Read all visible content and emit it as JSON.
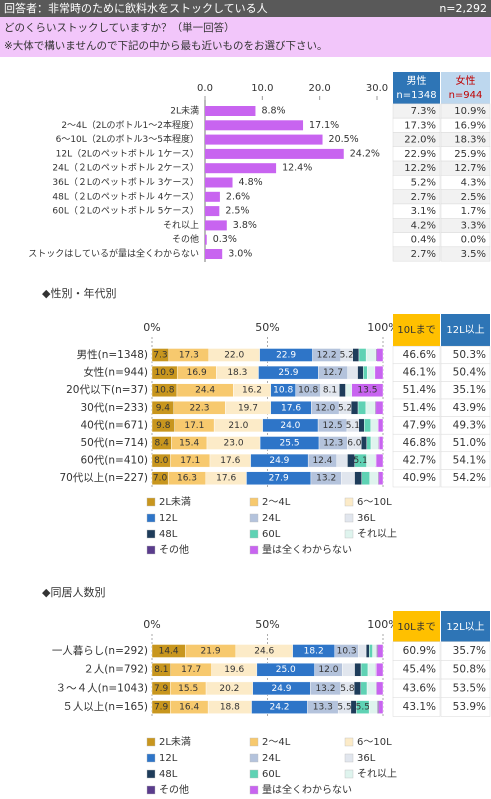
{
  "header": {
    "title": "回答者：非常時のために飲料水をストックしている人",
    "n": "n=2,292"
  },
  "question": {
    "text": "どのくらいストックしていますか？（単一回答）",
    "note": "※大体で構いませんので下記の中から最も近いものをお選び下さい。"
  },
  "chart_data": [
    {
      "type": "bar",
      "orientation": "horizontal",
      "color": "#c864f0",
      "categories": [
        "2L未満",
        "2〜4L（2Lのボトル1〜2本程度）",
        "6〜10L（2Lのボトル3〜5本程度）",
        "12L（2Lのペットボトル 1ケース）",
        "24L（２Lのペットボトル 2ケース）",
        "36L（２Lのペットボトル 3ケース）",
        "48L（２Lのペットボトル 4ケース）",
        "60L（２Lのペットボトル 5ケース）",
        "それ以上",
        "その他",
        "ストックはしているが量は全くわからない"
      ],
      "values": [
        8.8,
        17.1,
        20.5,
        24.2,
        12.4,
        4.8,
        2.6,
        2.5,
        3.8,
        0.3,
        3.0
      ],
      "value_labels": [
        "8.8%",
        "17.1%",
        "20.5%",
        "24.2%",
        "12.4%",
        "4.8%",
        "2.6%",
        "2.5%",
        "3.8%",
        "0.3%",
        "3.0%"
      ],
      "xlim": [
        0,
        30
      ],
      "xticks": [
        {
          "value": 0,
          "label": "0.0"
        },
        {
          "value": 10,
          "label": "10.0"
        },
        {
          "value": 20,
          "label": "20.0"
        },
        {
          "value": 30,
          "label": "30.0"
        }
      ],
      "table": {
        "columns": [
          {
            "name": "男性",
            "n": "n=1348",
            "color": "#2e75b6",
            "text_color": "#ffffff"
          },
          {
            "name": "女性",
            "n": "n=944",
            "color": "#bdd7ee",
            "text_color": "#c00000"
          }
        ],
        "rows": [
          [
            "7.3%",
            "10.9%"
          ],
          [
            "17.3%",
            "16.9%"
          ],
          [
            "22.0%",
            "18.3%"
          ],
          [
            "22.9%",
            "25.9%"
          ],
          [
            "12.2%",
            "12.7%"
          ],
          [
            "5.2%",
            "4.3%"
          ],
          [
            "2.7%",
            "2.5%"
          ],
          [
            "3.1%",
            "1.7%"
          ],
          [
            "4.2%",
            "3.3%"
          ],
          [
            "0.4%",
            "0.0%"
          ],
          [
            "2.7%",
            "3.5%"
          ]
        ]
      }
    },
    {
      "type": "stacked_bar",
      "title": "◆性別・年代別",
      "categories": [
        "男性(n=1348)",
        "女性(n=944)",
        "20代以下(n=37)",
        "30代(n=233)",
        "40代(n=671)",
        "50代(n=714)",
        "60代(n=410)",
        "70代以上(n=227)"
      ],
      "xlim": [
        0,
        100
      ],
      "xticks": [
        {
          "value": 0,
          "label": "0%"
        },
        {
          "value": 50,
          "label": "50%"
        },
        {
          "value": 100,
          "label": "100%"
        }
      ],
      "series": [
        {
          "name": "2L未満",
          "color": "#c8961e",
          "values": [
            7.3,
            10.9,
            10.8,
            9.4,
            9.8,
            8.4,
            8.0,
            7.0
          ],
          "value_labels": [
            "7.3",
            "10.9",
            "10.8",
            "9.4",
            "9.8",
            "8.4",
            "8.0",
            "7.0"
          ]
        },
        {
          "name": "2〜4L",
          "color": "#f7c96e",
          "values": [
            17.3,
            16.9,
            24.4,
            22.3,
            17.1,
            15.4,
            17.1,
            16.3
          ],
          "value_labels": [
            "17.3",
            "16.9",
            "24.4",
            "22.3",
            "17.1",
            "15.4",
            "17.1",
            "16.3"
          ]
        },
        {
          "name": "6〜10L",
          "color": "#fcebc8",
          "values": [
            22.0,
            18.3,
            16.2,
            19.7,
            21.0,
            23.0,
            17.6,
            17.6
          ],
          "value_labels": [
            "22.0",
            "18.3",
            "16.2",
            "19.7",
            "21.0",
            "23.0",
            "17.6",
            "17.6"
          ]
        },
        {
          "name": "12L",
          "color": "#2e75c8",
          "values": [
            22.9,
            25.9,
            10.8,
            17.6,
            24.0,
            25.5,
            24.9,
            27.9
          ],
          "value_labels": [
            "22.9",
            "25.9",
            "10.8",
            "17.6",
            "24.0",
            "25.5",
            "24.9",
            "27.9"
          ]
        },
        {
          "name": "24L",
          "color": "#b4c3dc",
          "values": [
            12.2,
            12.7,
            10.8,
            12.0,
            12.5,
            12.3,
            12.4,
            13.2
          ],
          "value_labels": [
            "12.2",
            "12.7",
            "10.8",
            "12.0",
            "12.5",
            "12.3",
            "12.4",
            "13.2"
          ]
        },
        {
          "name": "36L",
          "color": "#e1e6ee",
          "values": [
            5.2,
            4.3,
            8.1,
            5.2,
            5.1,
            6.0,
            4.6,
            5.7
          ],
          "value_labels": [
            "5.2",
            null,
            "8.1",
            "5.2",
            "5.1",
            "6.0",
            null,
            null
          ]
        },
        {
          "name": "48L",
          "color": "#1e3c5a",
          "values": [
            2.7,
            2.5,
            2.7,
            3.0,
            2.4,
            2.4,
            3.2,
            3.1
          ]
        },
        {
          "name": "60L",
          "color": "#5fd2b4",
          "values": [
            3.1,
            1.7,
            0,
            3.4,
            2.8,
            1.8,
            5.1,
            3.5
          ],
          "value_labels": [
            null,
            null,
            null,
            null,
            null,
            null,
            "5.1",
            null
          ]
        },
        {
          "name": "それ以上",
          "color": "#dff4ee",
          "values": [
            4.2,
            3.3,
            2.7,
            3.9,
            3.0,
            3.2,
            3.9,
            3.5
          ]
        },
        {
          "name": "その他",
          "color": "#5a3c8c",
          "values": [
            0.4,
            0.0,
            0,
            0.4,
            0.2,
            0.3,
            0.2,
            0.4
          ]
        },
        {
          "name": "量は全くわからない",
          "color": "#c864f0",
          "values": [
            2.7,
            3.5,
            13.5,
            3.1,
            2.1,
            1.7,
            3.0,
            1.8
          ],
          "value_labels": [
            null,
            null,
            "13.5",
            null,
            null,
            null,
            null,
            null
          ]
        }
      ],
      "summary_columns": [
        {
          "name": "10Lまで",
          "color": "#ffc000",
          "text_color": "#333333"
        },
        {
          "name": "12L以上",
          "color": "#2e75b6",
          "text_color": "#ffffff"
        }
      ],
      "summary": [
        [
          "46.6%",
          "50.3%"
        ],
        [
          "46.1%",
          "50.4%"
        ],
        [
          "51.4%",
          "35.1%"
        ],
        [
          "51.4%",
          "43.9%"
        ],
        [
          "47.9%",
          "49.3%"
        ],
        [
          "46.8%",
          "51.0%"
        ],
        [
          "42.7%",
          "54.1%"
        ],
        [
          "40.9%",
          "54.2%"
        ]
      ]
    },
    {
      "type": "stacked_bar",
      "title": "◆同居人数別",
      "categories": [
        "一人暮らし(n=292)",
        "２人(n=792)",
        "３～４人(n=1043)",
        "５人以上(n=165)"
      ],
      "xlim": [
        0,
        100
      ],
      "xticks": [
        {
          "value": 0,
          "label": "0%"
        },
        {
          "value": 50,
          "label": "50%"
        },
        {
          "value": 100,
          "label": "100%"
        }
      ],
      "series": [
        {
          "name": "2L未満",
          "color": "#c8961e",
          "values": [
            14.4,
            8.1,
            7.9,
            7.9
          ],
          "value_labels": [
            "14.4",
            "8.1",
            "7.9",
            "7.9"
          ]
        },
        {
          "name": "2〜4L",
          "color": "#f7c96e",
          "values": [
            21.9,
            17.7,
            15.5,
            16.4
          ],
          "value_labels": [
            "21.9",
            "17.7",
            "15.5",
            "16.4"
          ]
        },
        {
          "name": "6〜10L",
          "color": "#fcebc8",
          "values": [
            24.6,
            19.6,
            20.2,
            18.8
          ],
          "value_labels": [
            "24.6",
            "19.6",
            "20.2",
            "18.8"
          ]
        },
        {
          "name": "12L",
          "color": "#2e75c8",
          "values": [
            18.2,
            25.0,
            24.9,
            24.2
          ],
          "value_labels": [
            "18.2",
            "25.0",
            "24.9",
            "24.2"
          ]
        },
        {
          "name": "24L",
          "color": "#b4c3dc",
          "values": [
            10.3,
            12.0,
            13.2,
            13.3
          ],
          "value_labels": [
            "10.3",
            "12.0",
            "13.2",
            "13.3"
          ]
        },
        {
          "name": "36L",
          "color": "#e1e6ee",
          "values": [
            3.3,
            5.3,
            5.8,
            5.5
          ],
          "value_labels": [
            null,
            null,
            "5.8",
            "5.5"
          ]
        },
        {
          "name": "48L",
          "color": "#1e3c5a",
          "values": [
            1.4,
            2.8,
            2.9,
            2.4
          ]
        },
        {
          "name": "60L",
          "color": "#5fd2b4",
          "values": [
            1.4,
            3.0,
            2.7,
            5.5
          ],
          "value_labels": [
            null,
            null,
            null,
            "5.5"
          ]
        },
        {
          "name": "それ以上",
          "color": "#dff4ee",
          "values": [
            1.7,
            3.3,
            3.8,
            3.6
          ]
        },
        {
          "name": "その他",
          "color": "#5a3c8c",
          "values": [
            0.5,
            0.3,
            0.3,
            0.6
          ]
        },
        {
          "name": "量は全くわからない",
          "color": "#c864f0",
          "values": [
            2.3,
            2.9,
            2.8,
            1.8
          ]
        }
      ],
      "summary_columns": [
        {
          "name": "10Lまで",
          "color": "#ffc000",
          "text_color": "#333333"
        },
        {
          "name": "12L以上",
          "color": "#2e75b6",
          "text_color": "#ffffff"
        }
      ],
      "summary": [
        [
          "60.9%",
          "35.7%"
        ],
        [
          "45.4%",
          "50.8%"
        ],
        [
          "43.6%",
          "53.5%"
        ],
        [
          "43.1%",
          "53.9%"
        ]
      ]
    }
  ]
}
